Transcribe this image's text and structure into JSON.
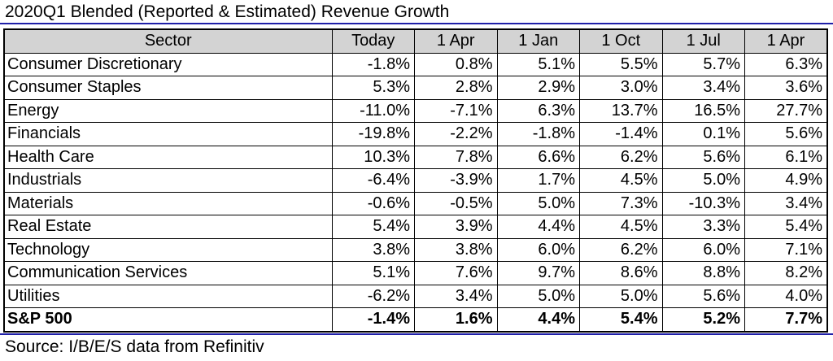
{
  "title": "2020Q1 Blended (Reported & Estimated) Revenue Growth",
  "table": {
    "headers": [
      "Sector",
      "Today",
      "1 Apr",
      "1 Jan",
      "1 Oct",
      "1 Jul",
      "1 Apr"
    ],
    "rows": [
      {
        "sector": "Consumer Discretionary",
        "values": [
          "-1.8%",
          "0.8%",
          "5.1%",
          "5.5%",
          "5.7%",
          "6.3%"
        ]
      },
      {
        "sector": "Consumer Staples",
        "values": [
          "5.3%",
          "2.8%",
          "2.9%",
          "3.0%",
          "3.4%",
          "3.6%"
        ]
      },
      {
        "sector": "Energy",
        "values": [
          "-11.0%",
          "-7.1%",
          "6.3%",
          "13.7%",
          "16.5%",
          "27.7%"
        ]
      },
      {
        "sector": "Financials",
        "values": [
          "-19.8%",
          "-2.2%",
          "-1.8%",
          "-1.4%",
          "0.1%",
          "5.6%"
        ]
      },
      {
        "sector": "Health Care",
        "values": [
          "10.3%",
          "7.8%",
          "6.6%",
          "6.2%",
          "5.6%",
          "6.1%"
        ]
      },
      {
        "sector": "Industrials",
        "values": [
          "-6.4%",
          "-3.9%",
          "1.7%",
          "4.5%",
          "5.0%",
          "4.9%"
        ]
      },
      {
        "sector": "Materials",
        "values": [
          "-0.6%",
          "-0.5%",
          "5.0%",
          "7.3%",
          "-10.3%",
          "3.4%"
        ]
      },
      {
        "sector": "Real Estate",
        "values": [
          "5.4%",
          "3.9%",
          "4.4%",
          "4.5%",
          "3.3%",
          "5.4%"
        ]
      },
      {
        "sector": "Technology",
        "values": [
          "3.8%",
          "3.8%",
          "6.0%",
          "6.2%",
          "6.0%",
          "7.1%"
        ]
      },
      {
        "sector": "Communication Services",
        "values": [
          "5.1%",
          "7.6%",
          "9.7%",
          "8.6%",
          "8.8%",
          "8.2%"
        ]
      },
      {
        "sector": "Utilities",
        "values": [
          "-6.2%",
          "3.4%",
          "5.0%",
          "5.0%",
          "5.6%",
          "4.0%"
        ]
      }
    ],
    "total": {
      "sector": "S&P 500",
      "values": [
        "-1.4%",
        "1.6%",
        "4.4%",
        "5.4%",
        "5.2%",
        "7.7%"
      ]
    }
  },
  "source": "Source: I/B/E/S data from Refinitiv",
  "colors": {
    "rule": "#1f1fa8",
    "header_bg": "#d3d3d3"
  }
}
